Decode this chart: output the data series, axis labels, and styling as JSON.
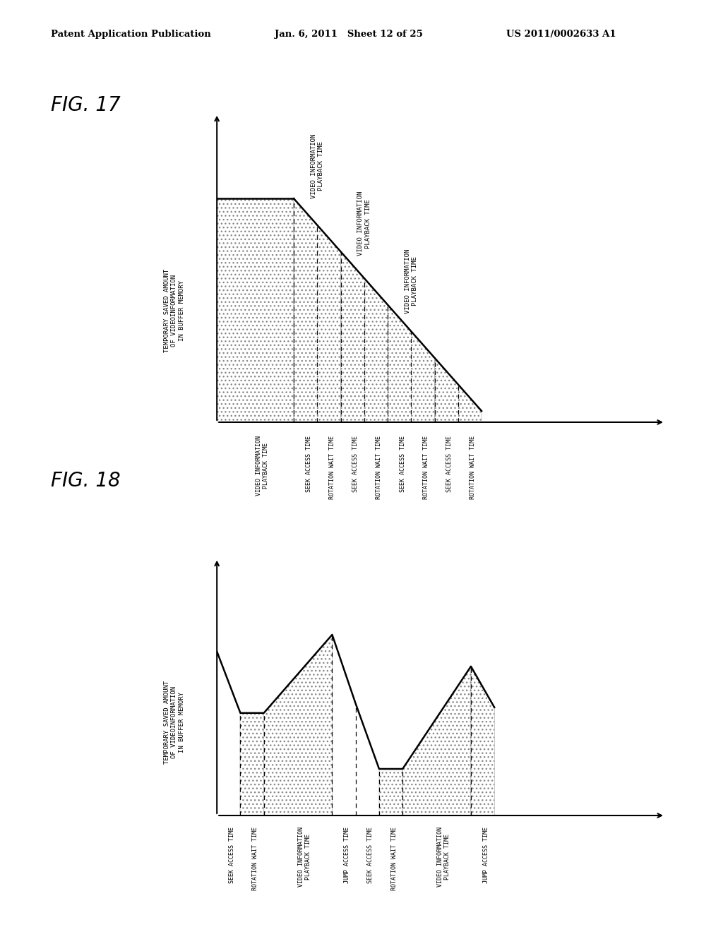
{
  "header_left": "Patent Application Publication",
  "header_mid": "Jan. 6, 2011   Sheet 12 of 25",
  "header_right": "US 2011/0002633 A1",
  "fig17_label": "FIG. 17",
  "fig18_label": "FIG. 18",
  "fig17_ylabel": "TEMPORARY SAVED AMOUNT\nOF VIDEOINFORMATION\nIN BUFFER MEMORY",
  "fig18_ylabel": "TEMPORARY SAVED AMOUNT\nOF VIDEOINFORMATION\nIN BUFFER MEMORY",
  "fig17_xtick_labels": [
    "VIDEO INFORMATION\nPLAYBACK TIME",
    "SEEK ACCESS TIME",
    "ROTATION WAIT TIME",
    "SEEK ACCESS TIME",
    "ROTATION WAIT TIME",
    "SEEK ACCESS TIME",
    "ROTATION WAIT TIME",
    "SEEK ACCESS TIME",
    "ROTATION WAIT TIME"
  ],
  "fig18_xtick_labels": [
    "SEEK ACCESS TIME",
    "ROTATION WAIT TIME",
    "VIDEO INFORMATION\nPLAYBACK TIME",
    "JUMP ACCESS TIME",
    "SEEK ACCESS TIME",
    "ROTATION WAIT TIME",
    "VIDEO INFORMATION\nPLAYBACK TIME",
    "JUMP ACCESS TIME"
  ],
  "fig17_above_labels": [
    "VIDEO INFORMATION\nPLAYBACK TIME",
    "VIDEO INFORMATION\nPLAYBACK TIME",
    "VIDEO INFORMATION\nPLAYBACK TIME"
  ],
  "background_color": "#ffffff"
}
